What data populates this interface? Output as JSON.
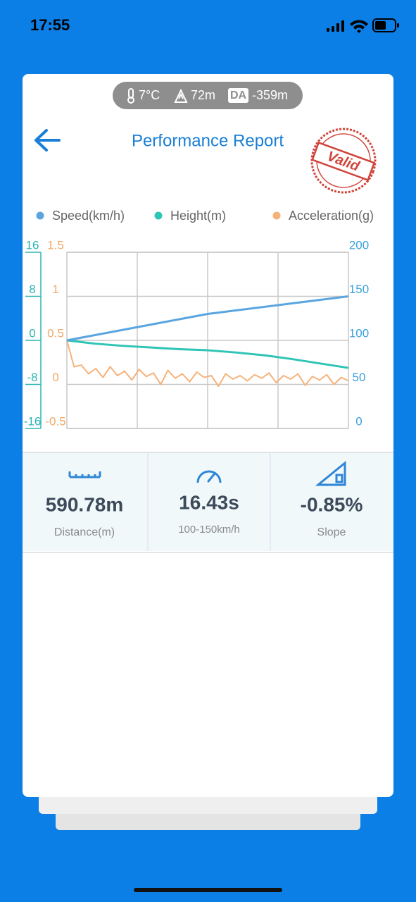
{
  "status_bar": {
    "time": "17:55"
  },
  "conditions": {
    "temperature": "7°C",
    "altitude": "72m",
    "da_badge": "DA",
    "density_altitude": "-359m"
  },
  "header": {
    "title": "Performance Report",
    "stamp": "Valid"
  },
  "chart_data": {
    "type": "line",
    "series": [
      {
        "name": "Speed(km/h)",
        "color": "#5aa5e0",
        "axis": "y2",
        "values": [
          100,
          106,
          112,
          118,
          124,
          130,
          134,
          138,
          142,
          146,
          150
        ]
      },
      {
        "name": "Height(m)",
        "color": "#2ec4b6",
        "axis": "y",
        "values": [
          0,
          -0.6,
          -1.0,
          -1.3,
          -1.6,
          -1.8,
          -2.2,
          -2.7,
          -3.4,
          -4.2,
          -5.0
        ]
      },
      {
        "name": "Acceleration(g)",
        "color": "#f5b27a",
        "axis": "y3",
        "values": [
          0.5,
          0.2,
          0.22,
          0.12,
          0.18,
          0.08,
          0.2,
          0.1,
          0.15,
          0.05,
          0.17,
          0.09,
          0.13,
          0.0,
          0.16,
          0.07,
          0.12,
          0.03,
          0.14,
          0.08,
          0.1,
          -0.02,
          0.12,
          0.06,
          0.1,
          0.04,
          0.11,
          0.07,
          0.13,
          0.02,
          0.1,
          0.06,
          0.12,
          -0.01,
          0.09,
          0.05,
          0.11,
          0.0,
          0.08,
          0.04
        ]
      }
    ],
    "ylim": [
      -16,
      16
    ],
    "yticks": [
      -16,
      -8,
      0,
      8,
      16
    ],
    "y3lim": [
      -0.5,
      1.5
    ],
    "y3ticks": [
      -0.5,
      0,
      0.5,
      1,
      1.5
    ],
    "y2lim": [
      0,
      200
    ],
    "y2ticks": [
      0,
      50,
      100,
      150,
      200
    ],
    "grid": true
  },
  "stats": [
    {
      "value": "590.78m",
      "label": "Distance(m)"
    },
    {
      "value": "16.43s",
      "label": "100-150km/h"
    },
    {
      "value": "-0.85%",
      "label": "Slope"
    }
  ]
}
